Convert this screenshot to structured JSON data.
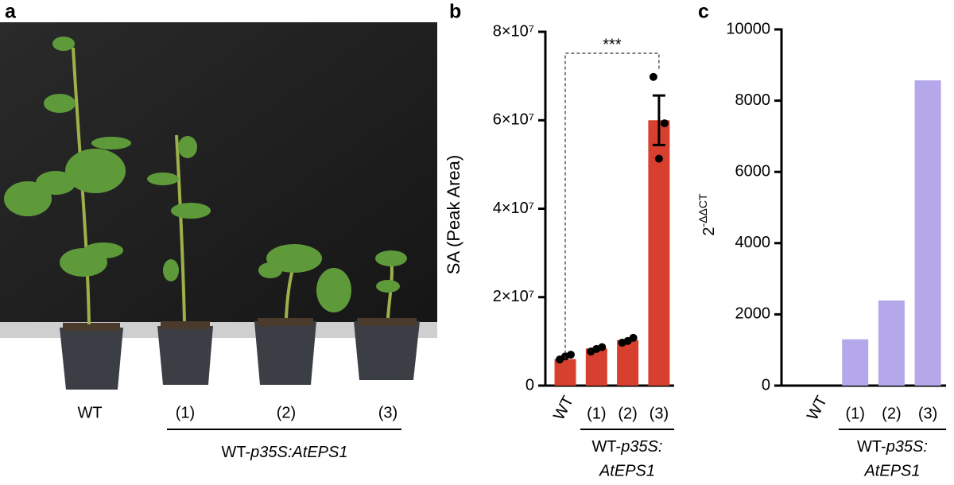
{
  "panel_a": {
    "panel_label": "a",
    "labels": [
      "WT",
      "(1)",
      "(2)",
      "(3)"
    ],
    "group_label": {
      "prefix": "WT-",
      "italic": "p35S:AtEPS1"
    }
  },
  "chart_data": [
    {
      "type": "bar",
      "panel_label": "b",
      "y_label": "SA (Peak Area)",
      "categories": [
        "WT",
        "(1)",
        "(2)",
        "(3)"
      ],
      "values": [
        6000000,
        8400000,
        10300000,
        60000000
      ],
      "errors": [
        null,
        null,
        null,
        5600000
      ],
      "points": [
        [
          5900000,
          7000000,
          6600000
        ],
        [
          7700000,
          8700000,
          8300000
        ],
        [
          9700000,
          10800000,
          10100000
        ],
        [
          69800000,
          59300000,
          51300000
        ]
      ],
      "color": "#d7402f",
      "point_color": "#000000",
      "ylim": [
        0,
        80000000
      ],
      "yticks": [
        0,
        {
          "value": 20000000,
          "label": "2×10⁷"
        },
        {
          "value": 40000000,
          "label": "4×10⁷"
        },
        {
          "value": 60000000,
          "label": "6×10⁷"
        },
        {
          "value": 80000000,
          "label": "8×10⁷"
        }
      ],
      "significance": {
        "label": "***",
        "from": "WT",
        "to": "(3)"
      },
      "group_label": {
        "line1_prefix": "WT-",
        "line1_italic": "p35S:",
        "line2_italic": "AtEPS1"
      }
    },
    {
      "type": "bar",
      "panel_label": "c",
      "y_label": {
        "base": "2",
        "exponent": "-ΔΔCT"
      },
      "categories": [
        "WT",
        "(1)",
        "(2)",
        "(3)"
      ],
      "values": [
        0,
        1300,
        2390,
        8570
      ],
      "color": "#b4a8ea",
      "ylim": [
        0,
        10000
      ],
      "yticks": [
        0,
        2000,
        4000,
        6000,
        8000,
        10000
      ],
      "group_label": {
        "line1_prefix": "WT-",
        "line1_italic": "p35S:",
        "line2_italic": "AtEPS1"
      }
    }
  ]
}
